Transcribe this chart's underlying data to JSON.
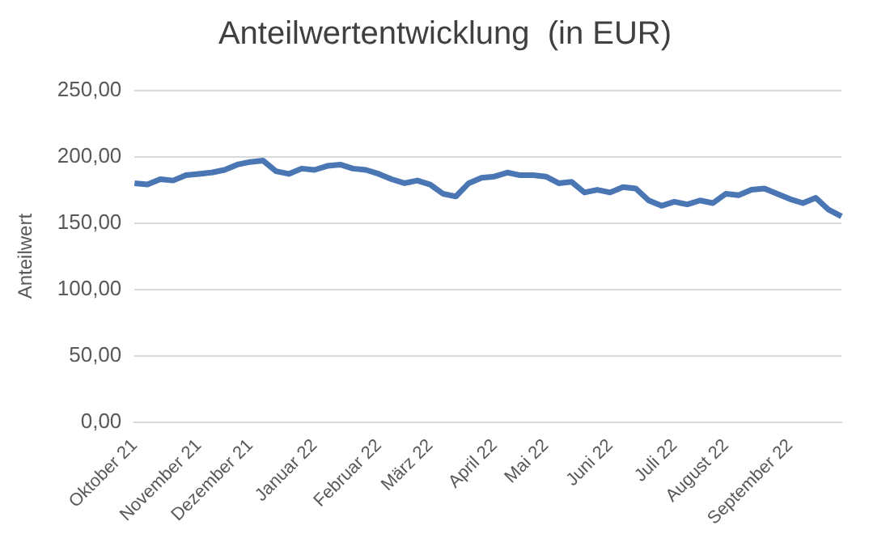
{
  "chart_data": {
    "type": "line",
    "title": "Anteilwertentwicklung  (in EUR)",
    "ylabel": "Anteilwert",
    "categories": [
      "Oktober 21",
      null,
      null,
      null,
      null,
      "November 21",
      null,
      null,
      null,
      "Dezember 21",
      null,
      null,
      null,
      null,
      "Januar 22",
      null,
      null,
      null,
      null,
      "Februar 22",
      null,
      null,
      null,
      "März 22",
      null,
      null,
      null,
      null,
      "April 22",
      null,
      null,
      null,
      "Mai 22",
      null,
      null,
      null,
      null,
      "Juni 22",
      null,
      null,
      null,
      null,
      "Juli 22",
      null,
      null,
      null,
      "August 22",
      null,
      null,
      null,
      null,
      "September 22",
      null,
      null,
      null,
      null
    ],
    "series": [
      {
        "color": "#4a76b4",
        "values": [
          180,
          179,
          183,
          182,
          186,
          187,
          188,
          190,
          194,
          196,
          197,
          189,
          187,
          191,
          190,
          193,
          194,
          191,
          190,
          187,
          183,
          180,
          182,
          179,
          172,
          170,
          180,
          184,
          185,
          188,
          186,
          186,
          185,
          180,
          181,
          173,
          175,
          173,
          177,
          176,
          167,
          163,
          166,
          164,
          167,
          165,
          172,
          171,
          175,
          176,
          172,
          168,
          165,
          169,
          160,
          155
        ]
      }
    ],
    "ylim": [
      0,
      250
    ],
    "yticks": [
      {
        "value": 0,
        "label": "0,00"
      },
      {
        "value": 50,
        "label": "50,00"
      },
      {
        "value": 100,
        "label": "100,00"
      },
      {
        "value": 150,
        "label": "150,00"
      },
      {
        "value": 200,
        "label": "200,00"
      },
      {
        "value": 250,
        "label": "250,00"
      }
    ],
    "grid": "y",
    "legend": false,
    "marker": "none",
    "line_style": "solid"
  }
}
